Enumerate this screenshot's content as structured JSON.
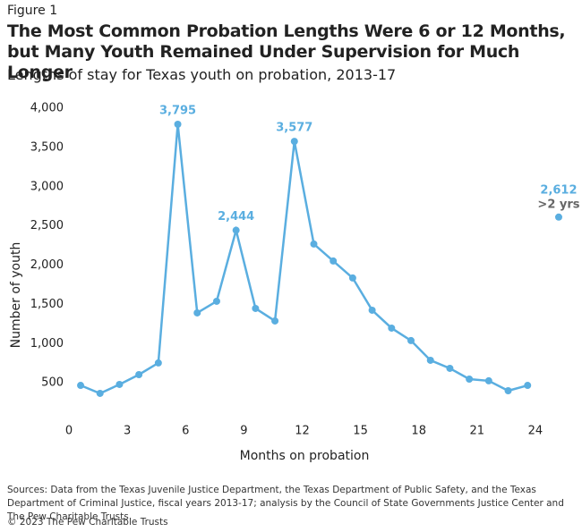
{
  "chart_data": {
    "type": "line",
    "figure_label": "Figure 1",
    "title": "The Most Common Probation Lengths Were 6 or 12 Months, but Many Youth Remained Under Supervision for Much Longer",
    "subtitle": "Lengths of stay for Texas youth on probation, 2013-17",
    "x_label": "Months on probation",
    "y_label": "Number of youth",
    "source": "Sources: Data from the Texas Juvenile Justice Department, the Texas Department of Public Safety, and the Texas Department of Criminal Justice, fiscal years 2013-17; analysis by the Council of State Governments Justice Center and The Pew Charitable Trusts",
    "copyright": "© 2023 The Pew Charitable Trusts",
    "xlim": [
      0,
      25.8
    ],
    "xticks": [
      0,
      3,
      6,
      9,
      12,
      15,
      18,
      21,
      24
    ],
    "ylim": [
      0,
      4000
    ],
    "yticks": [
      {
        "value": 500,
        "label": "500"
      },
      {
        "value": 1000,
        "label": "1,000"
      },
      {
        "value": 1500,
        "label": "1,500"
      },
      {
        "value": 2000,
        "label": "2,000"
      },
      {
        "value": 2500,
        "label": "2,500"
      },
      {
        "value": 3000,
        "label": "3,000"
      },
      {
        "value": 3500,
        "label": "3,500"
      },
      {
        "value": 4000,
        "label": "4,000"
      }
    ],
    "grid": false,
    "series": [
      {
        "color": "#5aaee0",
        "line": true,
        "x": [
          0.6,
          1.6,
          2.6,
          3.6,
          4.6,
          5.6,
          6.6,
          7.6,
          8.6,
          9.6,
          10.6,
          11.6,
          12.6,
          13.6,
          14.6,
          15.6,
          16.6,
          17.6,
          18.6,
          19.6,
          20.6,
          21.6,
          22.6,
          23.6
        ],
        "values": [
          467,
          365,
          479,
          604,
          753,
          3795,
          1391,
          1539,
          2444,
          1448,
          1288,
          3577,
          2269,
          2052,
          1836,
          1425,
          1197,
          1038,
          787,
          684,
          547,
          525,
          399,
          467
        ],
        "value_labels": [
          null,
          null,
          null,
          null,
          null,
          "3,795",
          null,
          null,
          "2,444",
          null,
          null,
          "3,577",
          null,
          null,
          null,
          null,
          null,
          null,
          null,
          null,
          null,
          null,
          null,
          null
        ]
      },
      {
        "color": "#5aaee0",
        "line": false,
        "x": [
          25.2
        ],
        "values": [
          2612
        ],
        "value_labels": [
          "2,612"
        ],
        "annotation": ">2 yrs"
      }
    ]
  }
}
